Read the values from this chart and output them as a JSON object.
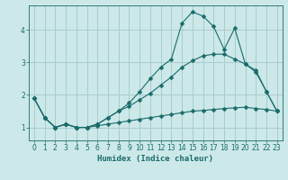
{
  "xlabel": "Humidex (Indice chaleur)",
  "bg_color": "#cce8e8",
  "grid_color": "#aacccc",
  "line_color": "#1a6b6b",
  "xlim": [
    -0.5,
    23.5
  ],
  "ylim": [
    0.6,
    4.75
  ],
  "yticks": [
    1,
    2,
    3,
    4
  ],
  "xticks": [
    0,
    1,
    2,
    3,
    4,
    5,
    6,
    7,
    8,
    9,
    10,
    11,
    12,
    13,
    14,
    15,
    16,
    17,
    18,
    19,
    20,
    21,
    22,
    23
  ],
  "line1_x": [
    0,
    1,
    2,
    3,
    4,
    5,
    6,
    7,
    8,
    9,
    10,
    11,
    12,
    13,
    14,
    15,
    16,
    17,
    18,
    19,
    20,
    21,
    22,
    23
  ],
  "line1_y": [
    1.9,
    1.3,
    1.0,
    1.1,
    1.0,
    1.0,
    1.1,
    1.3,
    1.5,
    1.75,
    2.1,
    2.5,
    2.85,
    3.1,
    4.2,
    4.55,
    4.42,
    4.1,
    3.4,
    4.05,
    2.95,
    2.75,
    2.1,
    1.5
  ],
  "line2_x": [
    0,
    1,
    2,
    3,
    4,
    5,
    6,
    7,
    8,
    9,
    10,
    11,
    12,
    13,
    14,
    15,
    16,
    17,
    18,
    19,
    20,
    21,
    22,
    23
  ],
  "line2_y": [
    1.9,
    1.3,
    1.0,
    1.1,
    1.0,
    1.0,
    1.1,
    1.3,
    1.5,
    1.65,
    1.85,
    2.05,
    2.3,
    2.55,
    2.85,
    3.05,
    3.2,
    3.25,
    3.25,
    3.1,
    2.95,
    2.7,
    2.1,
    1.5
  ],
  "line3_x": [
    0,
    1,
    2,
    3,
    4,
    5,
    6,
    7,
    8,
    9,
    10,
    11,
    12,
    13,
    14,
    15,
    16,
    17,
    18,
    19,
    20,
    21,
    22,
    23
  ],
  "line3_y": [
    1.9,
    1.3,
    1.0,
    1.1,
    1.0,
    1.0,
    1.05,
    1.1,
    1.15,
    1.2,
    1.25,
    1.3,
    1.35,
    1.4,
    1.45,
    1.5,
    1.52,
    1.55,
    1.58,
    1.6,
    1.62,
    1.58,
    1.55,
    1.5
  ]
}
